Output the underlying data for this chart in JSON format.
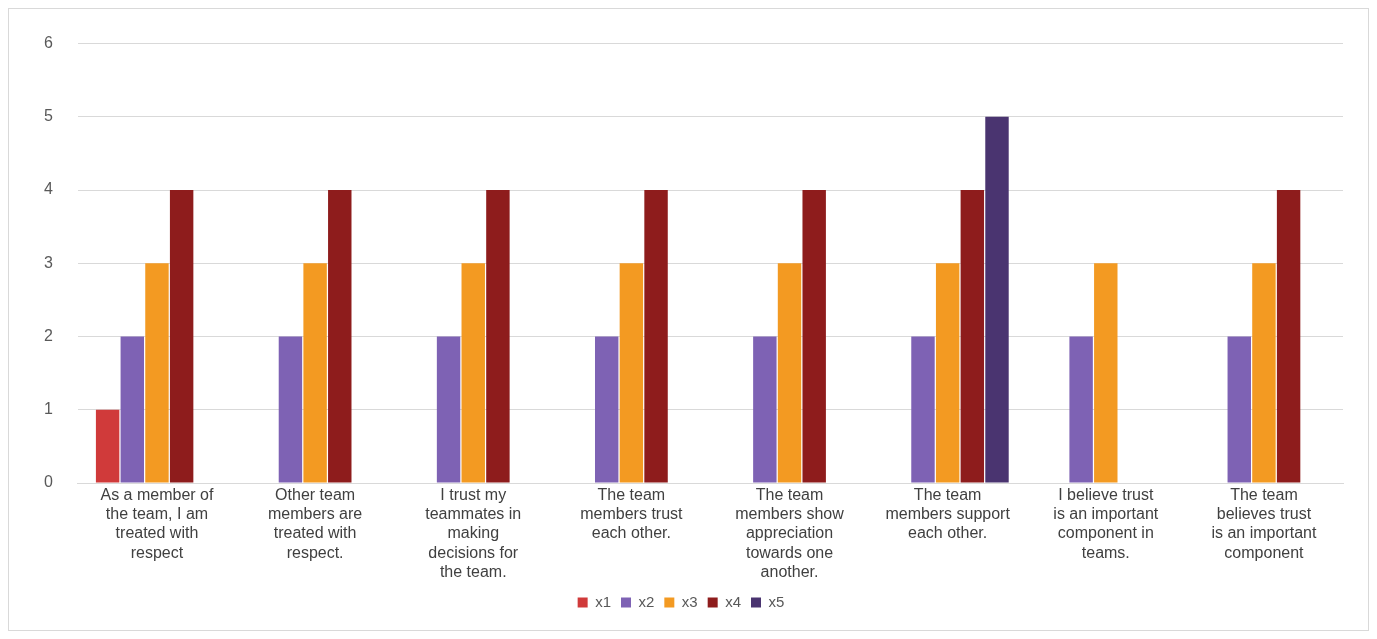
{
  "chart_data": {
    "type": "bar",
    "categories": [
      "As a member of the team, I am treated with respect",
      "Other team members are treated with respect.",
      "I trust my teammates in making decisions for the team.",
      "The team members trust each other.",
      "The team members show appreciation towards one another.",
      "The team members support each other.",
      "I believe trust is an important component in teams.",
      "The team believes trust is an important component"
    ],
    "series": [
      {
        "name": "x1",
        "color": "#d03a3a",
        "values": [
          1,
          null,
          null,
          null,
          null,
          null,
          null,
          null
        ]
      },
      {
        "name": "x2",
        "color": "#7e62b4",
        "values": [
          2,
          2,
          2,
          2,
          2,
          2,
          2,
          2
        ]
      },
      {
        "name": "x3",
        "color": "#f39a22",
        "values": [
          3,
          3,
          3,
          3,
          3,
          3,
          3,
          3
        ]
      },
      {
        "name": "x4",
        "color": "#8e1c1c",
        "values": [
          4,
          4,
          4,
          4,
          4,
          4,
          null,
          4
        ]
      },
      {
        "name": "x5",
        "color": "#4a3470",
        "values": [
          null,
          null,
          null,
          null,
          null,
          5,
          null,
          null
        ]
      }
    ],
    "ylim": [
      0,
      6
    ],
    "yticks": [
      0,
      1,
      2,
      3,
      4,
      5,
      6
    ],
    "grid": "y",
    "legend": "bottom"
  }
}
